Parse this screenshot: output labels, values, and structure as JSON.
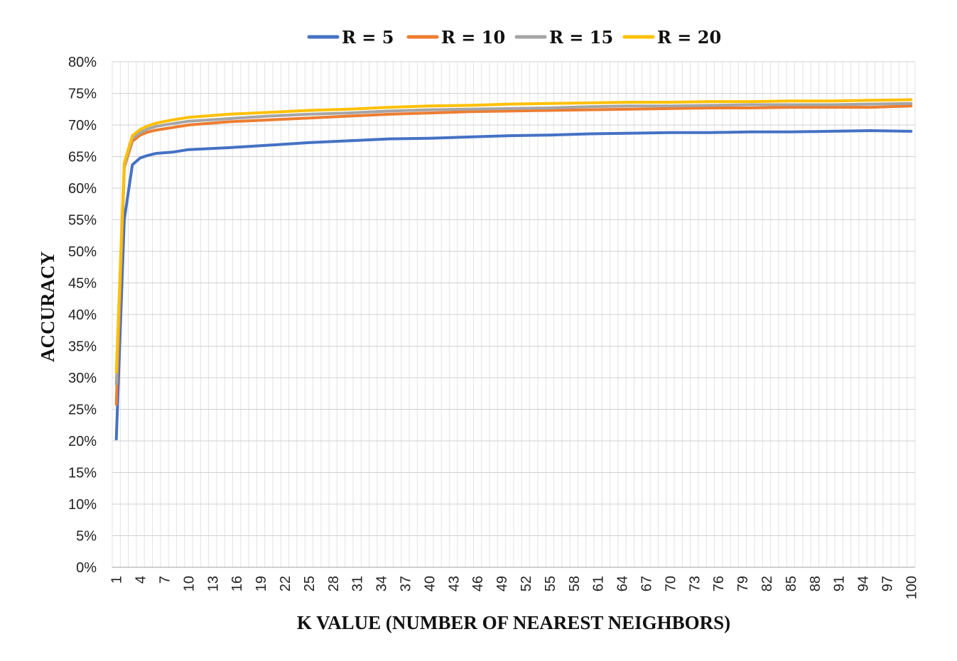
{
  "chart_data": {
    "type": "line",
    "xlabel": "K VALUE (NUMBER OF NEAREST NEIGHBORS)",
    "ylabel": "ACCURACY",
    "ylim": [
      0,
      80
    ],
    "y_tick_step": 5,
    "y_tick_suffix": "%",
    "x_range": [
      1,
      100
    ],
    "x_tick_labels": [
      1,
      4,
      7,
      10,
      13,
      16,
      19,
      22,
      25,
      28,
      31,
      34,
      37,
      40,
      43,
      46,
      49,
      52,
      55,
      58,
      61,
      64,
      67,
      70,
      73,
      76,
      79,
      82,
      85,
      88,
      91,
      94,
      97,
      100
    ],
    "grid": "major horizontal, minor vertical per K",
    "legend_position": "top",
    "series": [
      {
        "name": "R = 5",
        "color": "#4472C4",
        "points": [
          [
            1,
            20.3
          ],
          [
            2,
            55
          ],
          [
            3,
            63.7
          ],
          [
            4,
            64.8
          ],
          [
            5,
            65.2
          ],
          [
            6,
            65.5
          ],
          [
            8,
            65.7
          ],
          [
            10,
            66.1
          ],
          [
            15,
            66.4
          ],
          [
            20,
            66.8
          ],
          [
            25,
            67.2
          ],
          [
            30,
            67.5
          ],
          [
            35,
            67.8
          ],
          [
            40,
            67.9
          ],
          [
            45,
            68.1
          ],
          [
            50,
            68.3
          ],
          [
            55,
            68.4
          ],
          [
            60,
            68.6
          ],
          [
            65,
            68.7
          ],
          [
            70,
            68.8
          ],
          [
            75,
            68.8
          ],
          [
            80,
            68.9
          ],
          [
            85,
            68.9
          ],
          [
            90,
            69.0
          ],
          [
            95,
            69.1
          ],
          [
            100,
            69.0
          ]
        ]
      },
      {
        "name": "R = 10",
        "color": "#ED7D31",
        "points": [
          [
            1,
            25.8
          ],
          [
            2,
            63.3
          ],
          [
            3,
            67.4
          ],
          [
            4,
            68.4
          ],
          [
            5,
            68.9
          ],
          [
            6,
            69.2
          ],
          [
            8,
            69.6
          ],
          [
            10,
            70.0
          ],
          [
            15,
            70.5
          ],
          [
            20,
            70.8
          ],
          [
            25,
            71.1
          ],
          [
            30,
            71.4
          ],
          [
            35,
            71.7
          ],
          [
            40,
            71.9
          ],
          [
            45,
            72.1
          ],
          [
            50,
            72.2
          ],
          [
            55,
            72.3
          ],
          [
            60,
            72.4
          ],
          [
            65,
            72.5
          ],
          [
            70,
            72.6
          ],
          [
            75,
            72.7
          ],
          [
            80,
            72.7
          ],
          [
            85,
            72.8
          ],
          [
            90,
            72.8
          ],
          [
            95,
            72.8
          ],
          [
            100,
            73.0
          ]
        ]
      },
      {
        "name": "R = 15",
        "color": "#A5A5A5",
        "points": [
          [
            1,
            29.0
          ],
          [
            2,
            63.6
          ],
          [
            3,
            67.9
          ],
          [
            4,
            68.8
          ],
          [
            5,
            69.4
          ],
          [
            6,
            69.8
          ],
          [
            8,
            70.2
          ],
          [
            10,
            70.6
          ],
          [
            15,
            71.0
          ],
          [
            20,
            71.4
          ],
          [
            25,
            71.7
          ],
          [
            30,
            71.9
          ],
          [
            35,
            72.2
          ],
          [
            40,
            72.4
          ],
          [
            45,
            72.5
          ],
          [
            50,
            72.6
          ],
          [
            55,
            72.7
          ],
          [
            60,
            72.9
          ],
          [
            65,
            73.0
          ],
          [
            70,
            73.0
          ],
          [
            75,
            73.1
          ],
          [
            80,
            73.2
          ],
          [
            85,
            73.2
          ],
          [
            90,
            73.2
          ],
          [
            95,
            73.3
          ],
          [
            100,
            73.4
          ]
        ]
      },
      {
        "name": "R = 20",
        "color": "#FFC000",
        "points": [
          [
            1,
            30.9
          ],
          [
            2,
            64.0
          ],
          [
            3,
            68.3
          ],
          [
            4,
            69.3
          ],
          [
            5,
            69.9
          ],
          [
            6,
            70.3
          ],
          [
            8,
            70.8
          ],
          [
            10,
            71.2
          ],
          [
            15,
            71.7
          ],
          [
            20,
            72.0
          ],
          [
            25,
            72.3
          ],
          [
            30,
            72.5
          ],
          [
            35,
            72.8
          ],
          [
            40,
            73.0
          ],
          [
            45,
            73.1
          ],
          [
            50,
            73.3
          ],
          [
            55,
            73.4
          ],
          [
            60,
            73.5
          ],
          [
            65,
            73.6
          ],
          [
            70,
            73.6
          ],
          [
            75,
            73.7
          ],
          [
            80,
            73.7
          ],
          [
            85,
            73.8
          ],
          [
            90,
            73.8
          ],
          [
            95,
            73.9
          ],
          [
            100,
            74.0
          ]
        ]
      }
    ]
  }
}
